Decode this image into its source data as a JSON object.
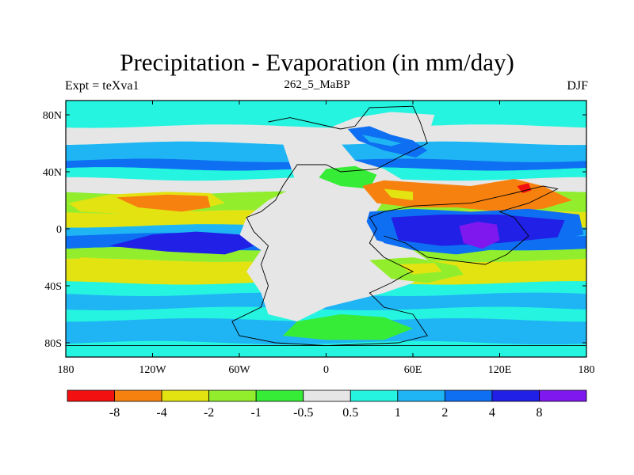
{
  "title": "Precipitation - Evaporation (in mm/day)",
  "left_subtitle": "Expt = teXva1",
  "center_subtitle": "262_5_MaBP",
  "right_subtitle": "DJF",
  "colors": {
    "lt_-8": "#f21010",
    "-8_-4": "#f7810f",
    "-4_-2": "#e3e312",
    "-2_-1": "#92ee2c",
    "-1_-0.5": "#37ec37",
    "-0.5_0.5": "#e6e6e6",
    "0.5_1": "#25f4e0",
    "1_2": "#1fb4f4",
    "2_4": "#0e6ff2",
    "4_8": "#2020e6",
    "gt_8": "#7e18ef"
  },
  "chart_data": {
    "type": "heatmap",
    "variable": "Precipitation - Evaporation",
    "units": "mm/day",
    "season": "DJF",
    "xlim": [
      -180,
      180
    ],
    "ylim": [
      -90,
      90
    ],
    "x_ticks": [
      -180,
      -120,
      -60,
      0,
      60,
      120,
      180
    ],
    "x_tick_labels": [
      "180",
      "120W",
      "60W",
      "0",
      "60E",
      "120E",
      "180"
    ],
    "y_ticks": [
      80,
      40,
      0,
      -40,
      -80
    ],
    "y_tick_labels": [
      "80N",
      "40N",
      "0",
      "40S",
      "80S"
    ],
    "colorbar": {
      "levels": [
        -8,
        -4,
        -2,
        -1,
        -0.5,
        0.5,
        1,
        2,
        4,
        8
      ],
      "labels": [
        "-8",
        "-4",
        "-2",
        "-1",
        "-0.5",
        "0.5",
        "1",
        "2",
        "4",
        "8"
      ],
      "colors": [
        "#f21010",
        "#f7810f",
        "#e3e312",
        "#92ee2c",
        "#37ec37",
        "#e6e6e6",
        "#25f4e0",
        "#1fb4f4",
        "#0e6ff2",
        "#2020e6",
        "#7e18ef"
      ]
    },
    "zonal_bands": [
      {
        "lat_range": [
          72,
          90
        ],
        "value_class": "0.5_1"
      },
      {
        "lat_range": [
          60,
          72
        ],
        "value_class": "-0.5_0.5"
      },
      {
        "lat_range": [
          48,
          60
        ],
        "value_class": "1_2"
      },
      {
        "lat_range": [
          42,
          48
        ],
        "value_class": "2_4"
      },
      {
        "lat_range": [
          35,
          42
        ],
        "value_class": "0.5_1"
      },
      {
        "lat_range": [
          25,
          35
        ],
        "value_class": "-0.5_0.5"
      },
      {
        "lat_range": [
          12,
          25
        ],
        "value_class": "-2_-1"
      },
      {
        "lat_range": [
          2,
          12
        ],
        "value_class": "-4_-2"
      },
      {
        "lat_range": [
          -4,
          2
        ],
        "value_class": "1_2"
      },
      {
        "lat_range": [
          -14,
          -4
        ],
        "value_class": "2_4"
      },
      {
        "lat_range": [
          -22,
          -14
        ],
        "value_class": "-2_-1"
      },
      {
        "lat_range": [
          -38,
          -22
        ],
        "value_class": "-4_-2"
      },
      {
        "lat_range": [
          -46,
          -38
        ],
        "value_class": "0.5_1"
      },
      {
        "lat_range": [
          -56,
          -46
        ],
        "value_class": "1_2"
      },
      {
        "lat_range": [
          -64,
          -56
        ],
        "value_class": "0.5_1"
      },
      {
        "lat_range": [
          -80,
          -64
        ],
        "value_class": "1_2"
      },
      {
        "lat_range": [
          -90,
          -80
        ],
        "value_class": "0.5_1"
      }
    ],
    "regional_features": [
      {
        "region": "Pangea interior",
        "value_class": "-0.5_0.5"
      },
      {
        "region": "Tethys tropics (60E-140E, 10N-20S)",
        "value_class": "4_8"
      },
      {
        "region": "Tethys core (100E-120E, 0-15S)",
        "value_class": "gt_8"
      },
      {
        "region": "Subtropical north Tethys (40E-140E, 15N-35N)",
        "value_class": "-8_-4"
      },
      {
        "region": "Eastern Panthalassa subtropics (140W-80W, 10N-25N)",
        "value_class": "-8_-4"
      },
      {
        "region": "West Pangea equatorial coast (100W-40W, 0-20S)",
        "value_class": "4_8"
      },
      {
        "region": "Northern Pangea high latitudes (10E-70E, 50N-75N)",
        "value_class": "2_4"
      },
      {
        "region": "Southern Tethys coast (30E-90E, 20S-40S)",
        "value_class": "-2_-1"
      }
    ]
  }
}
